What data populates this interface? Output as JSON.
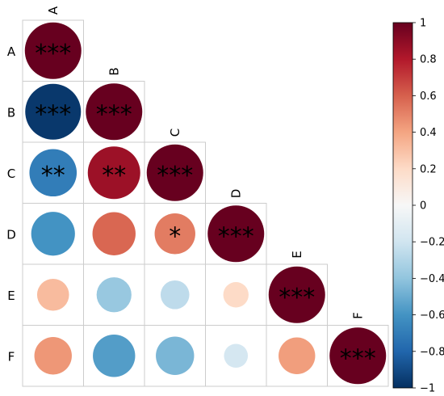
{
  "chart_data": {
    "type": "heatmap",
    "subtype": "correlation-circle-lower-triangle",
    "variables": [
      "A",
      "B",
      "C",
      "D",
      "E",
      "F"
    ],
    "matrix": [
      [
        1.0,
        null,
        null,
        null,
        null,
        null
      ],
      [
        -0.97,
        1.0,
        null,
        null,
        null,
        null
      ],
      [
        -0.7,
        0.86,
        1.0,
        null,
        null,
        null
      ],
      [
        -0.6,
        0.58,
        0.52,
        1.0,
        null,
        null
      ],
      [
        0.32,
        -0.38,
        -0.26,
        0.2,
        1.0,
        null
      ],
      [
        0.44,
        -0.56,
        -0.46,
        -0.18,
        0.42,
        1.0
      ]
    ],
    "significance": [
      [
        "***",
        "",
        "",
        "",
        "",
        ""
      ],
      [
        "***",
        "***",
        "",
        "",
        "",
        ""
      ],
      [
        "**",
        "**",
        "***",
        "",
        "",
        ""
      ],
      [
        "",
        "",
        "*",
        "***",
        "",
        ""
      ],
      [
        "",
        "",
        "",
        "",
        "***",
        ""
      ],
      [
        "",
        "",
        "",
        "",
        "",
        "***"
      ]
    ],
    "colorbar": {
      "range": [
        -1,
        1
      ],
      "ticks": [
        1,
        0.8,
        0.6,
        0.4,
        0.2,
        0,
        -0.2,
        -0.4,
        -0.6,
        -0.8,
        -1
      ],
      "tick_labels": [
        "1",
        "0.8",
        "0.6",
        "0.4",
        "0.2",
        "0",
        "−0.2",
        "−0.4",
        "−0.6",
        "−0.8",
        "−1"
      ],
      "colormap": "RdBu_r",
      "stops": [
        "#053061",
        "#2166ac",
        "#4393c3",
        "#92c5de",
        "#d1e5f0",
        "#f7f7f7",
        "#fddbc7",
        "#f4a582",
        "#d6604d",
        "#b2182b",
        "#67001f"
      ]
    },
    "grid_color": "#cccccc"
  }
}
